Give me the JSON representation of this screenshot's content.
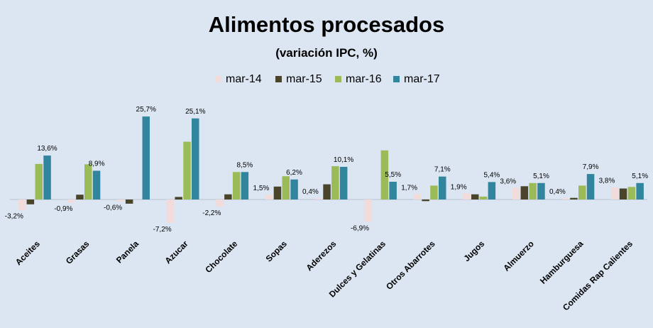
{
  "chart_data": {
    "type": "bar",
    "title": "Alimentos procesados",
    "subtitle": "(variación IPC, %)",
    "legend_position": "top",
    "grid": false,
    "ylim": [
      -8,
      27
    ],
    "categories": [
      "Aceites",
      "Grasas",
      "Panela",
      "Azucar",
      "Chocolate",
      "Sopas",
      "Aderezos",
      "Dulces y Gelatinas",
      "Otros Abarrotes",
      "Jugos",
      "Almuerzo",
      "Hamburguesa",
      "Comidas Rap Calientes"
    ],
    "series": [
      {
        "name": "mar-14",
        "color": "#f2dcdb",
        "values": [
          -3.2,
          -0.9,
          -0.6,
          -7.2,
          -2.2,
          1.5,
          0.4,
          -6.9,
          1.7,
          1.9,
          3.6,
          0.4,
          3.8
        ],
        "labels": [
          "-3,2%",
          "-0,9%",
          "-0,6%",
          "-7,2%",
          "-2,2%",
          "1,5%",
          "0,4%",
          "-6,9%",
          "1,7%",
          "1,9%",
          "3,6%",
          "0,4%",
          "3,8%"
        ]
      },
      {
        "name": "mar-15",
        "color": "#4a452a",
        "values": [
          -1.5,
          1.5,
          -1.3,
          0.8,
          1.6,
          4.0,
          4.7,
          0.0,
          -0.5,
          1.6,
          4.1,
          0.5,
          3.4
        ],
        "labels": []
      },
      {
        "name": "mar-16",
        "color": "#9bbb59",
        "values": [
          11.0,
          10.9,
          0.0,
          17.9,
          8.5,
          7.2,
          10.3,
          15.2,
          4.3,
          0.9,
          5.1,
          4.3,
          3.9
        ],
        "labels": []
      },
      {
        "name": "mar-17",
        "color": "#31859c",
        "values": [
          13.6,
          8.9,
          25.7,
          25.1,
          8.5,
          6.2,
          10.1,
          5.5,
          7.1,
          5.4,
          5.1,
          7.9,
          5.1
        ],
        "labels": [
          "13,6%",
          "8,9%",
          "25,7%",
          "25,1%",
          "8,5%",
          "6,2%",
          "10,1%",
          "5,5%",
          "7,1%",
          "5,4%",
          "5,1%",
          "7,9%",
          "5,1%"
        ]
      }
    ]
  }
}
